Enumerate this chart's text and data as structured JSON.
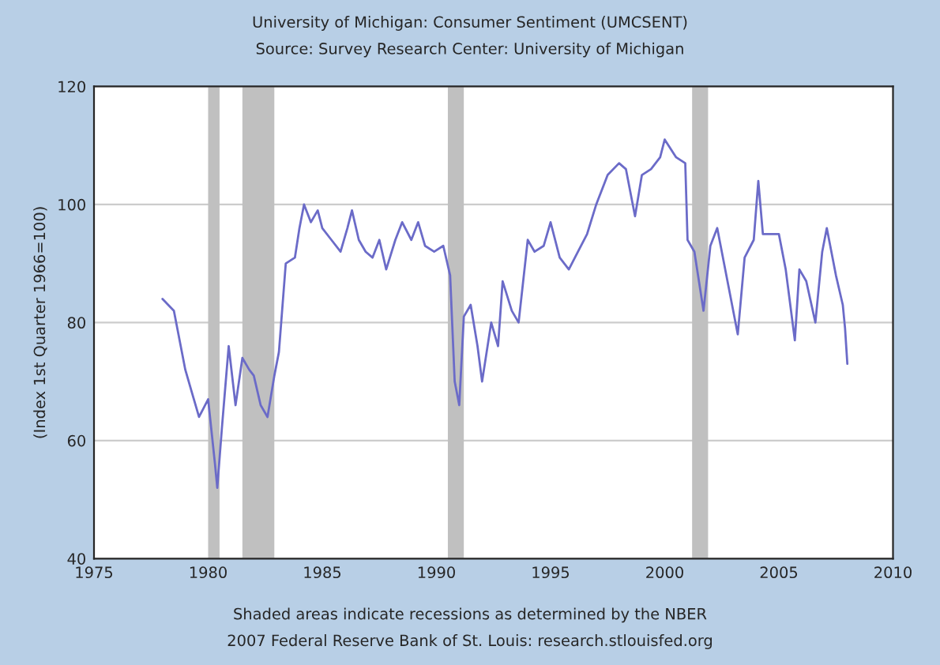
{
  "chart_data": {
    "type": "line",
    "title": "University of Michigan: Consumer Sentiment (UMCSENT)",
    "subtitle": "Source: Survey Research Center: University of Michigan",
    "ylabel": "(Index 1st Quarter 1966=100)",
    "annotations": [
      "Shaded areas indicate recessions as determined by the NBER",
      "2007 Federal Reserve Bank of St. Louis: research.stlouisfed.org"
    ],
    "x": [
      1978.0,
      1978.5,
      1979.0,
      1979.3,
      1979.6,
      1980.0,
      1980.3,
      1980.4,
      1980.6,
      1980.9,
      1981.2,
      1981.5,
      1981.8,
      1982.0,
      1982.3,
      1982.6,
      1982.9,
      1983.1,
      1983.4,
      1983.8,
      1984.0,
      1984.2,
      1984.5,
      1984.8,
      1985.0,
      1985.4,
      1985.8,
      1986.1,
      1986.3,
      1986.6,
      1986.9,
      1987.2,
      1987.5,
      1987.8,
      1988.2,
      1988.5,
      1988.9,
      1989.2,
      1989.5,
      1989.9,
      1990.3,
      1990.6,
      1990.8,
      1991.0,
      1991.2,
      1991.5,
      1991.8,
      1992.0,
      1992.4,
      1992.7,
      1992.9,
      1993.3,
      1993.6,
      1994.0,
      1994.3,
      1994.7,
      1995.0,
      1995.4,
      1995.8,
      1996.2,
      1996.6,
      1997.0,
      1997.5,
      1998.0,
      1998.3,
      1998.7,
      1999.0,
      1999.4,
      1999.8,
      2000.0,
      2000.5,
      2000.9,
      2001.0,
      2001.3,
      2001.7,
      2002.0,
      2002.3,
      2002.8,
      2003.2,
      2003.5,
      2003.9,
      2004.1,
      2004.3,
      2004.7,
      2005.0,
      2005.3,
      2005.7,
      2005.9,
      2006.2,
      2006.6,
      2006.9,
      2007.1,
      2007.5,
      2007.8,
      2007.9,
      2008.0
    ],
    "series": [
      {
        "color": "#6b6bc8",
        "values": [
          84,
          82,
          72,
          68,
          64,
          67,
          56,
          52,
          62,
          76,
          66,
          74,
          72,
          71,
          66,
          64,
          71,
          75,
          90,
          91,
          96,
          100,
          97,
          99,
          96,
          94,
          92,
          96,
          99,
          94,
          92,
          91,
          94,
          89,
          94,
          97,
          94,
          97,
          93,
          92,
          93,
          88,
          70,
          66,
          81,
          83,
          76,
          70,
          80,
          76,
          87,
          82,
          80,
          94,
          92,
          93,
          97,
          91,
          89,
          92,
          95,
          100,
          105,
          107,
          106,
          98,
          105,
          106,
          108,
          111,
          108,
          107,
          94,
          92,
          82,
          93,
          96,
          86,
          78,
          91,
          94,
          104,
          95,
          95,
          95,
          89,
          77,
          89,
          87,
          80,
          92,
          96,
          88,
          83,
          79,
          73
        ]
      }
    ],
    "xlim": [
      1975,
      2010
    ],
    "xticks": [
      1975,
      1980,
      1985,
      1990,
      1995,
      2000,
      2005,
      2010
    ],
    "ylim": [
      40,
      120
    ],
    "yticks": [
      40,
      60,
      80,
      100,
      120
    ],
    "grid": "y",
    "bands": [
      {
        "axis": "x",
        "from": 1980.0,
        "to": 1980.5,
        "color": "#c0c0c0"
      },
      {
        "axis": "x",
        "from": 1981.5,
        "to": 1982.9,
        "color": "#c0c0c0"
      },
      {
        "axis": "x",
        "from": 1990.5,
        "to": 1991.2,
        "color": "#c0c0c0"
      },
      {
        "axis": "x",
        "from": 2001.2,
        "to": 2001.9,
        "color": "#c0c0c0"
      }
    ]
  }
}
